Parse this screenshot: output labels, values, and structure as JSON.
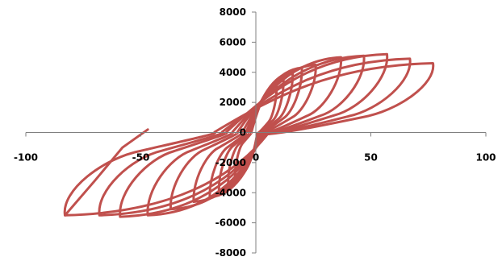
{
  "chart_data": {
    "type": "line",
    "title": "",
    "xlabel": "",
    "ylabel": "",
    "xlim": [
      -100,
      100
    ],
    "ylim": [
      -8000,
      8000
    ],
    "x_ticks": [
      -100,
      -50,
      0,
      50,
      100
    ],
    "y_ticks": [
      -8000,
      -6000,
      -4000,
      -2000,
      0,
      2000,
      4000,
      6000,
      8000
    ],
    "x_tick_labels": [
      "-100",
      "-50",
      "0",
      "50",
      "100"
    ],
    "y_tick_labels": [
      "-8000",
      "-6000",
      "-4000",
      "-2000",
      "0",
      "2000",
      "4000",
      "6000",
      "8000"
    ],
    "grid": false,
    "legend": "none",
    "series_color": "#C0504D",
    "loops": [
      {
        "max": [
          9,
          3100
        ],
        "min": [
          -9,
          -3000
        ]
      },
      {
        "max": [
          12,
          3500
        ],
        "min": [
          -12,
          -3400
        ]
      },
      {
        "max": [
          16,
          4000
        ],
        "min": [
          -16,
          -3900
        ]
      },
      {
        "max": [
          20,
          4300
        ],
        "min": [
          -20,
          -4300
        ]
      },
      {
        "max": [
          26,
          4500
        ],
        "min": [
          -27,
          -4600
        ]
      },
      {
        "max": [
          37,
          5000
        ],
        "min": [
          -37,
          -5100
        ]
      },
      {
        "max": [
          47,
          5100
        ],
        "min": [
          -47,
          -5500
        ]
      },
      {
        "max": [
          57,
          5200
        ],
        "min": [
          -59,
          -5600
        ]
      },
      {
        "max": [
          67,
          4900
        ],
        "min": [
          -68,
          -5500
        ]
      },
      {
        "max": [
          77,
          4600
        ],
        "min": [
          -83,
          -5500
        ]
      }
    ],
    "final_branch": [
      [
        -83,
        -5500
      ],
      [
        -70,
        -3200
      ],
      [
        -58,
        -1000
      ],
      [
        -47,
        200
      ]
    ]
  }
}
